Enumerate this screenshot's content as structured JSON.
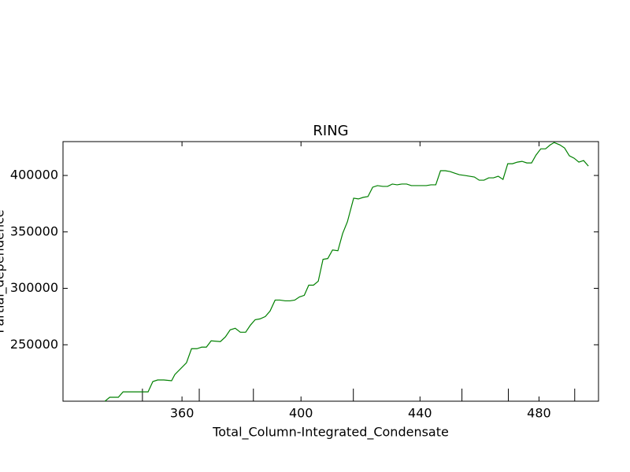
{
  "chart_data": {
    "type": "line",
    "title": "RING",
    "x_label": "Total_Column-Integrated_Condensate",
    "y_label": "Partial_dependence",
    "x": [
      334.1,
      335.7,
      338.6,
      340.2,
      348.6,
      350.2,
      351.8,
      353.9,
      356.5,
      357.6,
      361.5,
      363.2,
      365.0,
      366.6,
      368.2,
      369.8,
      372.9,
      374.6,
      376.2,
      377.9,
      379.6,
      381.4,
      383.0,
      384.6,
      386.2,
      388.0,
      389.6,
      391.3,
      392.9,
      394.7,
      396.3,
      397.9,
      399.5,
      401.1,
      402.6,
      404.2,
      405.8,
      407.4,
      409.0,
      410.6,
      412.4,
      414.0,
      415.6,
      417.7,
      419.3,
      420.9,
      422.5,
      424.1,
      425.7,
      427.5,
      429.1,
      430.7,
      432.3,
      433.9,
      435.5,
      437.1,
      438.7,
      440.3,
      442.1,
      443.7,
      445.3,
      446.9,
      448.5,
      450.1,
      451.6,
      453.2,
      455.1,
      456.7,
      458.3,
      459.9,
      461.5,
      463.1,
      464.7,
      466.3,
      467.9,
      469.5,
      471.1,
      472.7,
      474.3,
      475.9,
      477.5,
      479.0,
      480.6,
      482.2,
      483.8,
      485.1,
      487.0,
      488.6,
      490.2,
      491.8,
      493.4,
      495.0,
      496.6
    ],
    "series": [
      {
        "color": "#008000",
        "values": [
          200000,
          203500,
          203500,
          208300,
          208300,
          217400,
          218800,
          218800,
          218100,
          223600,
          234000,
          246500,
          246500,
          247900,
          247900,
          253500,
          252800,
          257000,
          263200,
          264600,
          261100,
          261100,
          267400,
          272200,
          272900,
          275000,
          279900,
          289600,
          289600,
          288900,
          288900,
          289600,
          292400,
          293800,
          302800,
          302800,
          306300,
          325700,
          326400,
          334000,
          333300,
          348600,
          359000,
          379900,
          379200,
          380600,
          381300,
          389600,
          391000,
          390300,
          390300,
          392400,
          391700,
          392400,
          392400,
          391000,
          391000,
          391000,
          391000,
          391700,
          391700,
          404200,
          404200,
          403500,
          402100,
          400700,
          400000,
          399300,
          398600,
          395800,
          395800,
          397900,
          397900,
          399300,
          396500,
          410400,
          410400,
          411800,
          412500,
          411100,
          411100,
          418100,
          423600,
          423600,
          427100,
          429200,
          427100,
          424300,
          417400,
          415300,
          411800,
          413200,
          408300
        ]
      }
    ],
    "deciles": [
      346.7,
      365.8,
      384.0,
      417.6,
      454.1,
      469.7,
      492.0
    ],
    "xlim": [
      320,
      500
    ],
    "ylim": [
      200000,
      430000
    ],
    "xticks": [
      360,
      400,
      440,
      480
    ],
    "yticks": [
      250000,
      300000,
      350000,
      400000
    ]
  }
}
